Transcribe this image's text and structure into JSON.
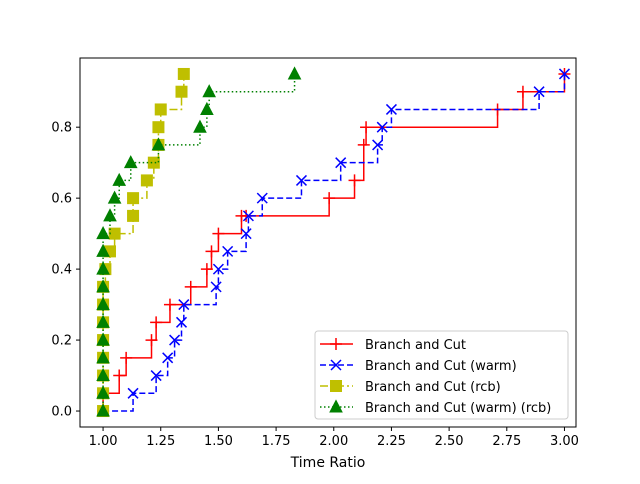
{
  "chart_data": {
    "type": "line",
    "step": "post",
    "xlabel": "Time Ratio",
    "ylabel": "",
    "title": "",
    "xlim": [
      0.9,
      3.05
    ],
    "ylim": [
      -0.045,
      0.995
    ],
    "xticks": [
      1.0,
      1.25,
      1.5,
      1.75,
      2.0,
      2.25,
      2.5,
      2.75,
      3.0
    ],
    "xtick_labels": [
      "1.00",
      "1.25",
      "1.50",
      "1.75",
      "2.00",
      "2.25",
      "2.50",
      "2.75",
      "3.00"
    ],
    "yticks": [
      0.0,
      0.2,
      0.4,
      0.6,
      0.8
    ],
    "ytick_labels": [
      "0.0",
      "0.2",
      "0.4",
      "0.6",
      "0.8"
    ],
    "grid": false,
    "legend_position": "lower-right",
    "series": [
      {
        "name": "Branch and Cut",
        "color": "#ff0000",
        "linestyle": "solid",
        "marker": "plus",
        "x": [
          1.0,
          1.0,
          1.07,
          1.1,
          1.21,
          1.23,
          1.29,
          1.38,
          1.45,
          1.47,
          1.5,
          1.6,
          1.62,
          1.98,
          2.09,
          2.13,
          2.14,
          2.71,
          2.82,
          3.0
        ],
        "y": [
          0.0,
          0.05,
          0.1,
          0.15,
          0.2,
          0.25,
          0.3,
          0.35,
          0.4,
          0.45,
          0.5,
          0.55,
          0.55,
          0.6,
          0.65,
          0.75,
          0.8,
          0.85,
          0.9,
          0.95
        ]
      },
      {
        "name": "Branch and Cut (warm)",
        "color": "#0000ff",
        "linestyle": "dashed",
        "marker": "x",
        "x": [
          1.0,
          1.13,
          1.23,
          1.28,
          1.31,
          1.34,
          1.35,
          1.49,
          1.5,
          1.54,
          1.62,
          1.63,
          1.69,
          1.86,
          2.03,
          2.19,
          2.21,
          2.25,
          2.89,
          3.0
        ],
        "y": [
          0.0,
          0.05,
          0.1,
          0.15,
          0.2,
          0.25,
          0.3,
          0.35,
          0.4,
          0.45,
          0.5,
          0.55,
          0.6,
          0.65,
          0.7,
          0.75,
          0.8,
          0.85,
          0.9,
          0.95
        ]
      },
      {
        "name": "Branch and Cut (rcb)",
        "color": "#bfbf00",
        "linestyle": "dashdot",
        "marker": "square",
        "x": [
          1.0,
          1.0,
          1.0,
          1.0,
          1.0,
          1.0,
          1.0,
          1.0,
          1.01,
          1.03,
          1.05,
          1.13,
          1.13,
          1.19,
          1.22,
          1.24,
          1.24,
          1.25,
          1.34,
          1.35
        ],
        "y": [
          0.0,
          0.05,
          0.1,
          0.15,
          0.2,
          0.25,
          0.3,
          0.35,
          0.4,
          0.45,
          0.5,
          0.55,
          0.6,
          0.65,
          0.7,
          0.75,
          0.8,
          0.85,
          0.9,
          0.95
        ]
      },
      {
        "name": "Branch and Cut (warm) (rcb)",
        "color": "#008000",
        "linestyle": "dotted",
        "marker": "triangle",
        "x": [
          1.0,
          1.0,
          1.0,
          1.0,
          1.0,
          1.0,
          1.0,
          1.0,
          1.0,
          1.0,
          1.0,
          1.03,
          1.05,
          1.07,
          1.12,
          1.24,
          1.42,
          1.45,
          1.46,
          1.83
        ],
        "y": [
          0.0,
          0.05,
          0.1,
          0.15,
          0.2,
          0.25,
          0.3,
          0.35,
          0.4,
          0.45,
          0.5,
          0.55,
          0.6,
          0.65,
          0.7,
          0.75,
          0.8,
          0.85,
          0.9,
          0.95
        ]
      }
    ]
  }
}
